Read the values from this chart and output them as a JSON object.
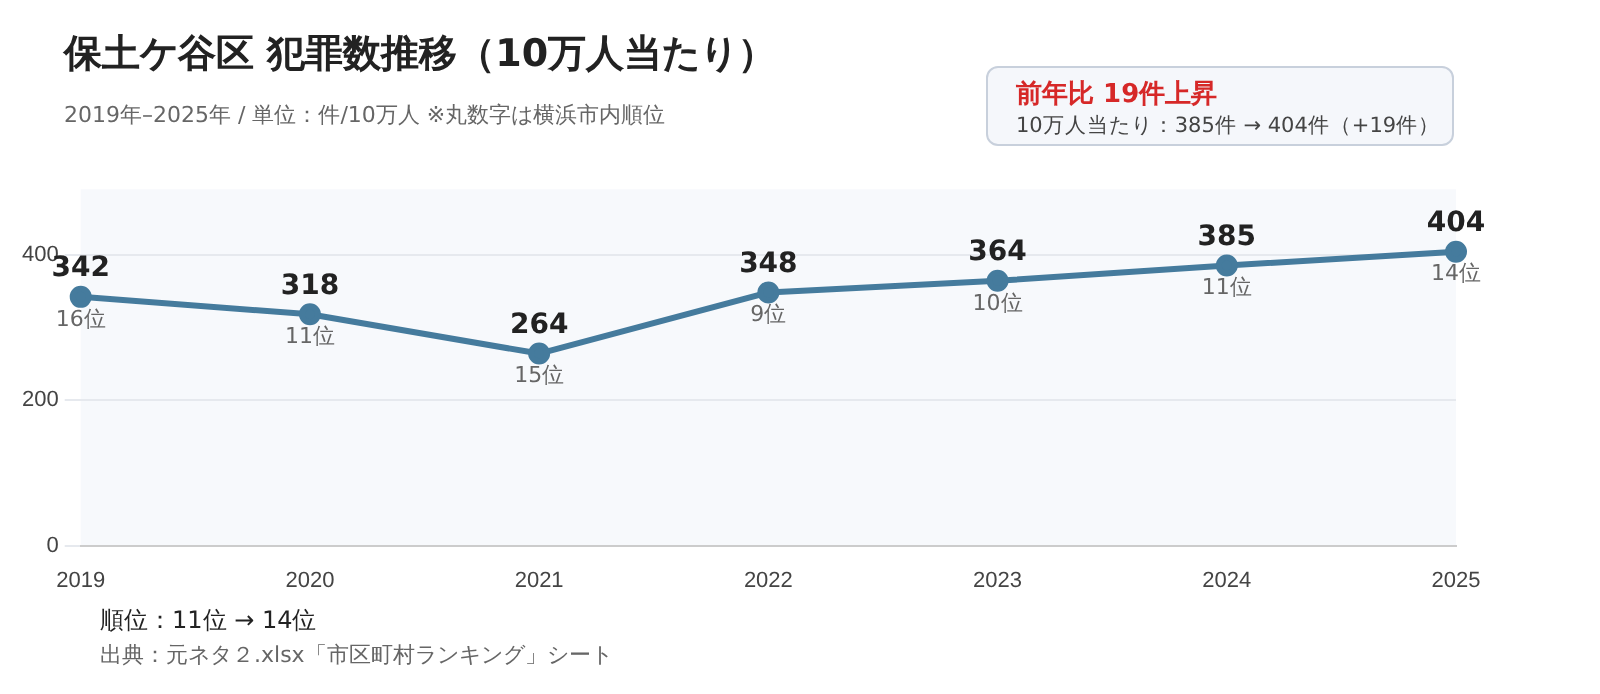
{
  "chart_data": {
    "type": "line",
    "title": "保土ケ谷区 犯罪数推移（10万人当たり）",
    "subtitle": "2019年–2025年 / 単位：件/10万人 ※丸数字は横浜市内順位",
    "categories": [
      "2019",
      "2020",
      "2021",
      "2022",
      "2023",
      "2024",
      "2025"
    ],
    "series": [
      {
        "color": "#457b9d",
        "values": [
          342,
          318,
          264,
          348,
          364,
          385,
          404
        ]
      }
    ],
    "data_labels": true,
    "marker": "circle",
    "grid": "y",
    "legend": false,
    "ylim": [
      0,
      490
    ],
    "yticks": [
      0,
      200,
      400
    ],
    "annotations": [
      "前年比 19件上昇",
      "10万人当たり：385件 → 404件（+19件）",
      "順位：11位 → 14位",
      "出典：元ネタ２.xlsx「市区町村ランキング」シート",
      {
        "text": "16位",
        "x": "2019",
        "y": 342
      },
      {
        "text": "11位",
        "x": "2020",
        "y": 318
      },
      {
        "text": "15位",
        "x": "2021",
        "y": 264
      },
      {
        "text": "9位",
        "x": "2022",
        "y": 348
      },
      {
        "text": "10位",
        "x": "2023",
        "y": 364
      },
      {
        "text": "11位",
        "x": "2024",
        "y": 385
      },
      {
        "text": "14位",
        "x": "2025",
        "y": 404
      }
    ]
  }
}
